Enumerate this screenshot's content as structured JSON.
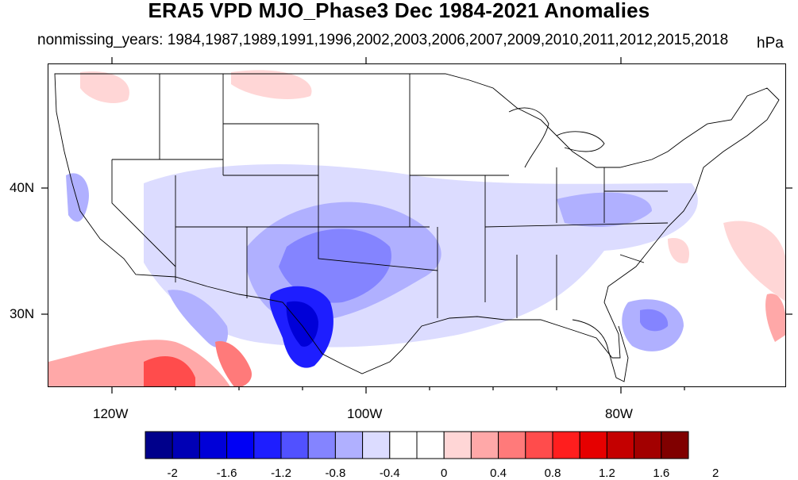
{
  "title": "ERA5 VPD MJO_Phase3 Dec 1984-2021 Anomalies",
  "subtitle": "nonmissing_years: 1984,1987,1989,1991,1996,2002,2003,2006,2007,2009,2010,2011,2012,2015,2018",
  "units": "hPa",
  "map": {
    "lon_range": [
      -125,
      -67
    ],
    "lat_range": [
      24,
      50
    ],
    "x_ticks": [
      "120W",
      "100W",
      "80W"
    ],
    "y_ticks": [
      "40N",
      "30N"
    ]
  },
  "colorbar": {
    "labels": [
      "-2",
      "-1.6",
      "-1.2",
      "-0.8",
      "-0.4",
      "0",
      "0.4",
      "0.8",
      "1.2",
      "1.6",
      "2"
    ],
    "colors": [
      "#00008b",
      "#0000b5",
      "#0000d8",
      "#0000f5",
      "#1e1eff",
      "#5151ff",
      "#8484ff",
      "#b0b0ff",
      "#dcdcff",
      "#ffffff",
      "#ffffff",
      "#ffd6d6",
      "#ffa8a8",
      "#ff7a7a",
      "#ff4c4c",
      "#ff1e1e",
      "#e60000",
      "#c40000",
      "#a20000",
      "#800000"
    ]
  },
  "chart_data": {
    "type": "heatmap",
    "variable": "VPD anomaly",
    "units": "hPa",
    "regions": [
      {
        "lon": -104,
        "lat": 29.5,
        "value": -1.8
      },
      {
        "lon": -103,
        "lat": 31.5,
        "value": -1.4
      },
      {
        "lon": -100,
        "lat": 34,
        "value": -0.7
      },
      {
        "lon": -96,
        "lat": 33,
        "value": -0.6
      },
      {
        "lon": -93,
        "lat": 37,
        "value": -0.3
      },
      {
        "lon": -80,
        "lat": 28.5,
        "value": -0.5
      },
      {
        "lon": -110,
        "lat": 25,
        "value": 0.9
      },
      {
        "lon": -115,
        "lat": 26,
        "value": 1.2
      },
      {
        "lon": -68,
        "lat": 29,
        "value": 0.5
      },
      {
        "lon": -75,
        "lat": 35,
        "value": 0.3
      }
    ]
  }
}
